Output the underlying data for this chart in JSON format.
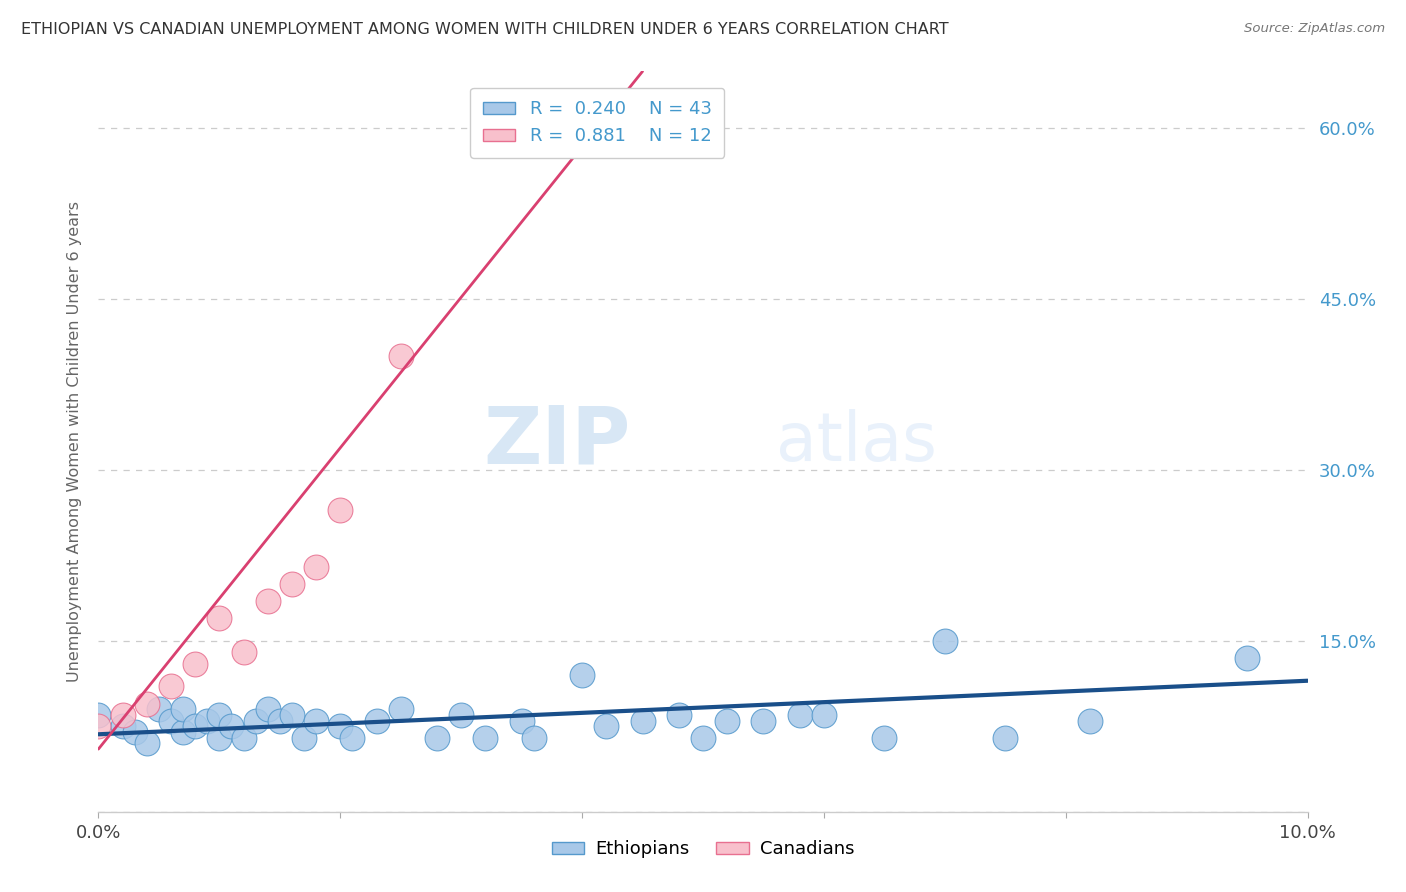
{
  "title": "ETHIOPIAN VS CANADIAN UNEMPLOYMENT AMONG WOMEN WITH CHILDREN UNDER 6 YEARS CORRELATION CHART",
  "source": "Source: ZipAtlas.com",
  "ylabel": "Unemployment Among Women with Children Under 6 years",
  "xlim": [
    0.0,
    0.1
  ],
  "ylim": [
    0.0,
    0.65
  ],
  "xtick_positions": [
    0.0,
    0.02,
    0.04,
    0.06,
    0.08,
    0.1
  ],
  "xticklabels": [
    "0.0%",
    "",
    "",
    "",
    "",
    "10.0%"
  ],
  "ytick_positions": [
    0.0,
    0.15,
    0.3,
    0.45,
    0.6
  ],
  "yticklabels": [
    "",
    "15.0%",
    "30.0%",
    "45.0%",
    "60.0%"
  ],
  "R1": "0.240",
  "N1": "43",
  "R2": "0.881",
  "N2": "12",
  "blue_face": "#a8c8e8",
  "blue_edge": "#5599cc",
  "pink_face": "#f8c0cc",
  "pink_edge": "#e87090",
  "line_blue_color": "#1a4f8a",
  "line_pink_color": "#d94070",
  "watermark_zip": "ZIP",
  "watermark_atlas": "atlas",
  "title_color": "#333333",
  "source_color": "#777777",
  "ylabel_color": "#666666",
  "tick_x_color": "#444444",
  "tick_y_color": "#4499cc",
  "grid_color": "#cccccc",
  "legend_text_color": "#4499cc",
  "ethiopians_x": [
    0.0,
    0.002,
    0.003,
    0.004,
    0.005,
    0.006,
    0.007,
    0.007,
    0.008,
    0.009,
    0.01,
    0.01,
    0.011,
    0.012,
    0.013,
    0.014,
    0.015,
    0.016,
    0.017,
    0.018,
    0.02,
    0.021,
    0.023,
    0.025,
    0.028,
    0.03,
    0.032,
    0.035,
    0.036,
    0.04,
    0.042,
    0.045,
    0.048,
    0.05,
    0.052,
    0.055,
    0.058,
    0.06,
    0.065,
    0.07,
    0.075,
    0.082,
    0.095
  ],
  "ethiopians_y": [
    0.085,
    0.075,
    0.07,
    0.06,
    0.09,
    0.08,
    0.07,
    0.09,
    0.075,
    0.08,
    0.065,
    0.085,
    0.075,
    0.065,
    0.08,
    0.09,
    0.08,
    0.085,
    0.065,
    0.08,
    0.075,
    0.065,
    0.08,
    0.09,
    0.065,
    0.085,
    0.065,
    0.08,
    0.065,
    0.12,
    0.075,
    0.08,
    0.085,
    0.065,
    0.08,
    0.08,
    0.085,
    0.085,
    0.065,
    0.15,
    0.065,
    0.08,
    0.135
  ],
  "canadians_x": [
    0.0,
    0.002,
    0.004,
    0.006,
    0.008,
    0.01,
    0.012,
    0.014,
    0.016,
    0.018,
    0.02,
    0.025
  ],
  "canadians_y": [
    0.075,
    0.085,
    0.095,
    0.11,
    0.13,
    0.17,
    0.14,
    0.185,
    0.2,
    0.215,
    0.265,
    0.4
  ],
  "line_blue_x0": 0.0,
  "line_blue_y0": 0.068,
  "line_blue_x1": 0.1,
  "line_blue_y1": 0.115,
  "line_pink_x0": 0.0,
  "line_pink_y0": 0.055,
  "line_pink_x1": 0.045,
  "line_pink_y1": 0.65
}
